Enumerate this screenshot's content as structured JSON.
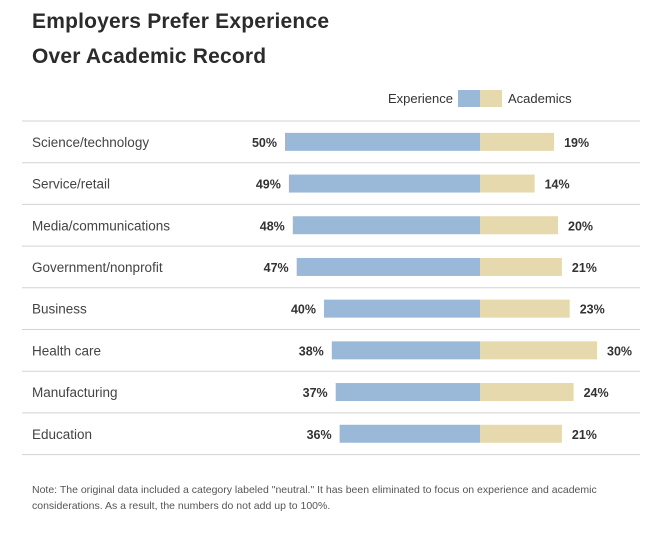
{
  "title_line1": "Employers Prefer Experience",
  "title_line2": "Over Academic Record",
  "note": "Note: The original data included a category labeled \"neutral.\" It has been eliminated to focus on experience and academic considerations. As a result, the numbers do not add up to 100%.",
  "colors": {
    "experience": "#9ab9d9",
    "academics": "#e6d9ad",
    "divider": "#d3d3d3",
    "label": "#444444"
  },
  "chart_data": {
    "type": "bar",
    "orientation": "diverging-horizontal",
    "legend": [
      "Experience",
      "Academics"
    ],
    "legend_position": "top-right",
    "categories": [
      "Science/technology",
      "Service/retail",
      "Media/communications",
      "Government/nonprofit",
      "Business",
      "Health care",
      "Manufacturing",
      "Education"
    ],
    "series": [
      {
        "name": "Experience",
        "values": [
          50,
          49,
          48,
          47,
          40,
          38,
          37,
          36
        ],
        "labels": [
          "50%",
          "49%",
          "48%",
          "47%",
          "40%",
          "38%",
          "37%",
          "36%"
        ]
      },
      {
        "name": "Academics",
        "values": [
          19,
          14,
          20,
          21,
          23,
          30,
          24,
          21
        ],
        "labels": [
          "19%",
          "14%",
          "20%",
          "21%",
          "23%",
          "30%",
          "24%",
          "21%"
        ]
      }
    ],
    "unit": "%"
  }
}
